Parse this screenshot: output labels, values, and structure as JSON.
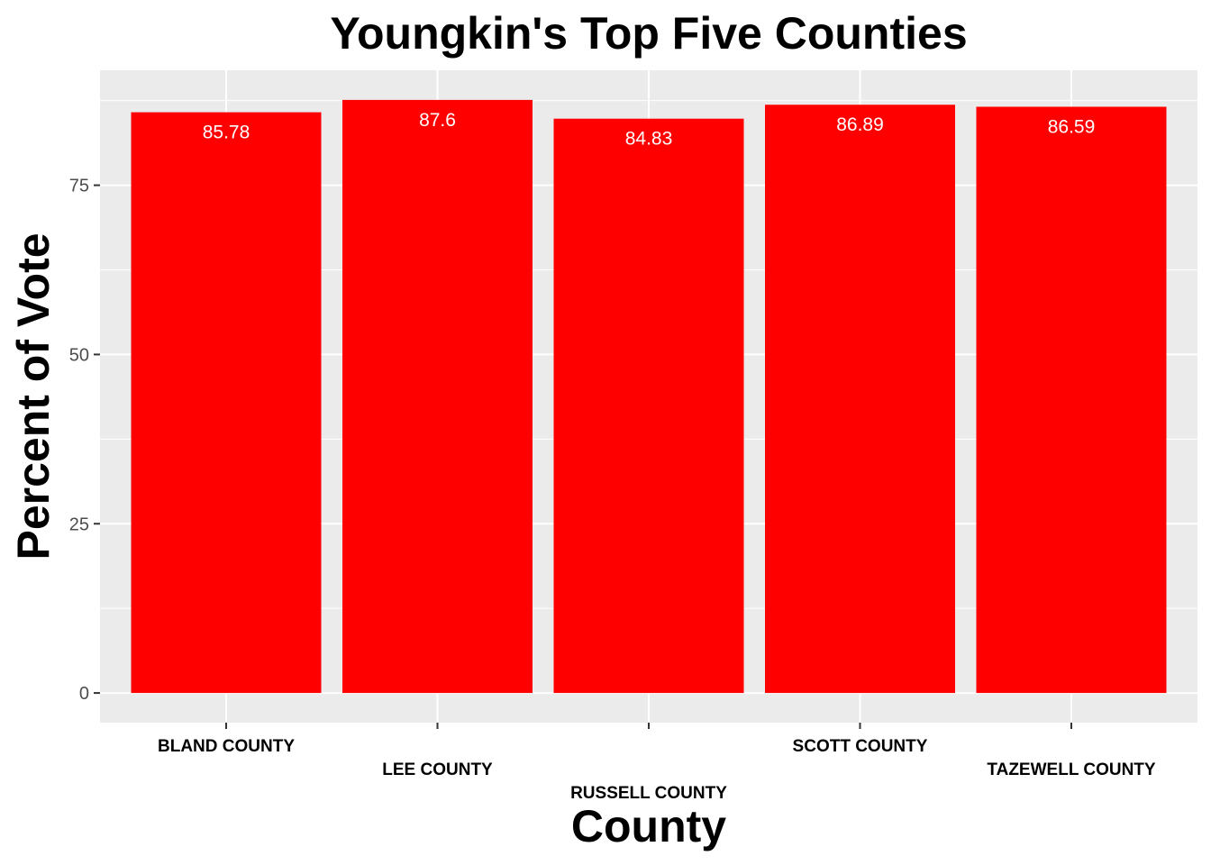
{
  "chart_data": {
    "type": "bar",
    "title": "Youngkin's Top Five Counties",
    "xlabel": "County",
    "ylabel": "Percent of Vote",
    "categories": [
      "BLAND COUNTY",
      "LEE COUNTY",
      "RUSSELL COUNTY",
      "SCOTT COUNTY",
      "TAZEWELL COUNTY"
    ],
    "values": [
      85.78,
      87.6,
      84.83,
      86.89,
      86.59
    ],
    "data_labels": [
      "85.78",
      "87.6",
      "84.83",
      "86.89",
      "86.59"
    ],
    "yticks": [
      0,
      25,
      50,
      75
    ],
    "ytick_labels": [
      "0",
      "25",
      "50",
      "75"
    ],
    "ylim": [
      -4.38,
      91.98
    ],
    "grid": true,
    "bar_color": "#FF0000",
    "panel_color": "#EBEBEB",
    "grid_color": "#FFFFFF",
    "label_color": "#FFFFFF"
  }
}
